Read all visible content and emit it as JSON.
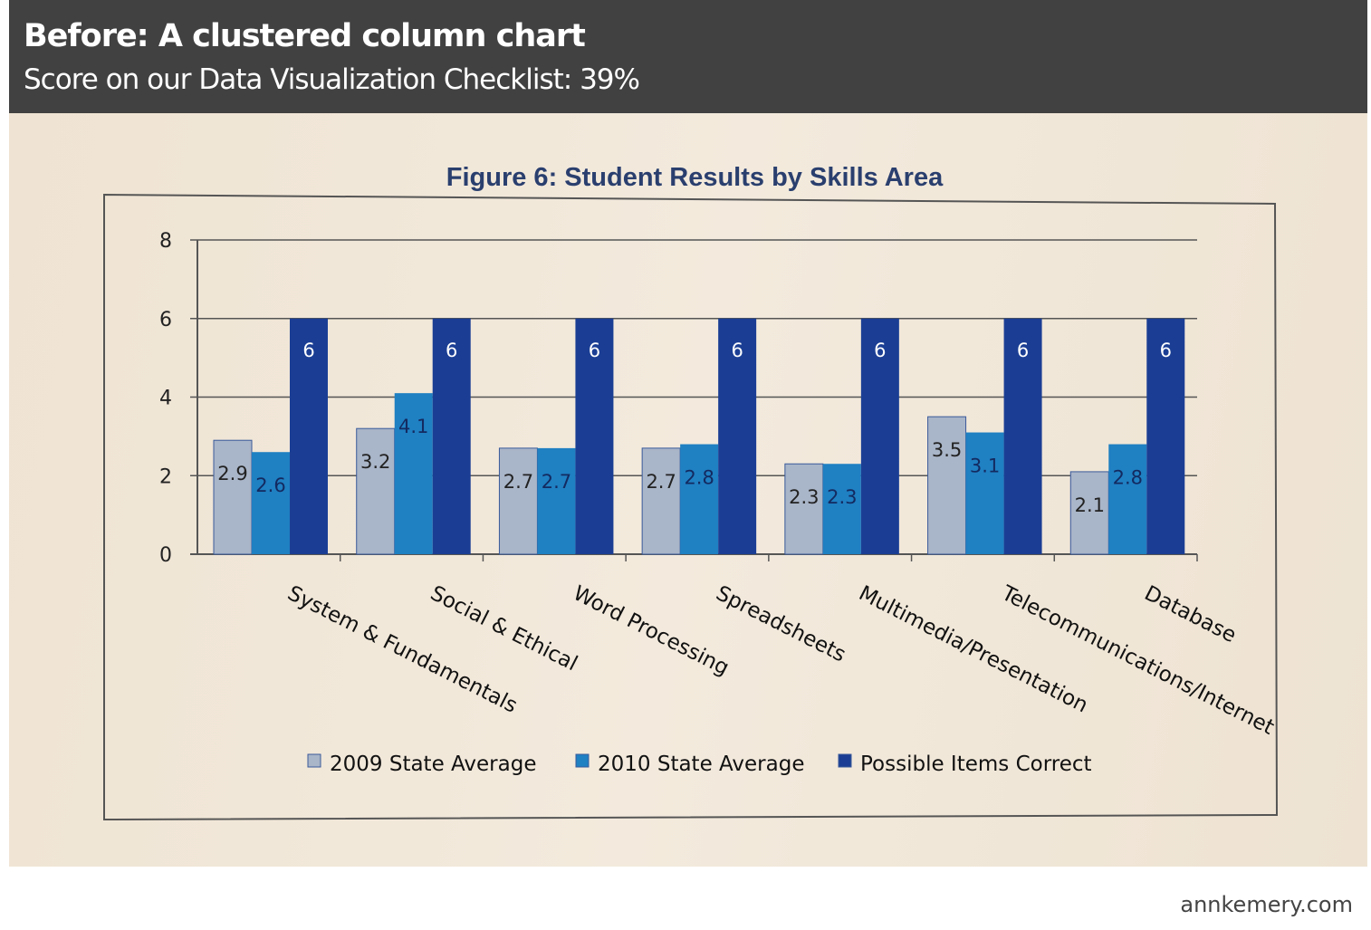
{
  "header": {
    "title": "Before: A clustered column chart",
    "subtitle": "Score on our Data Visualization Checklist:  39%"
  },
  "credit": "annkemery.com",
  "chart_data": {
    "type": "bar",
    "title": "Figure 6: Student Results by Skills Area",
    "categories": [
      "System & Fundamentals",
      "Social & Ethical",
      "Word Processing",
      "Spreadsheets",
      "Multimedia/Presentation",
      "Telecommunications/Internet",
      "Database"
    ],
    "series": [
      {
        "name": "2009 State Average",
        "values": [
          2.9,
          3.2,
          2.7,
          2.7,
          2.3,
          3.5,
          2.1
        ],
        "color": "#a9b5c8"
      },
      {
        "name": "2010 State Average",
        "values": [
          2.6,
          4.1,
          2.7,
          2.8,
          2.3,
          3.1,
          2.8
        ],
        "color": "#1f80c2"
      },
      {
        "name": "Possible Items Correct",
        "values": [
          6,
          6,
          6,
          6,
          6,
          6,
          6
        ],
        "color": "#1b3e94"
      }
    ],
    "ylim": [
      0,
      8
    ],
    "yticks": [
      "0",
      "2",
      "4",
      "6",
      "8"
    ],
    "grid": true,
    "data_labels": true,
    "legend_position": "bottom"
  }
}
